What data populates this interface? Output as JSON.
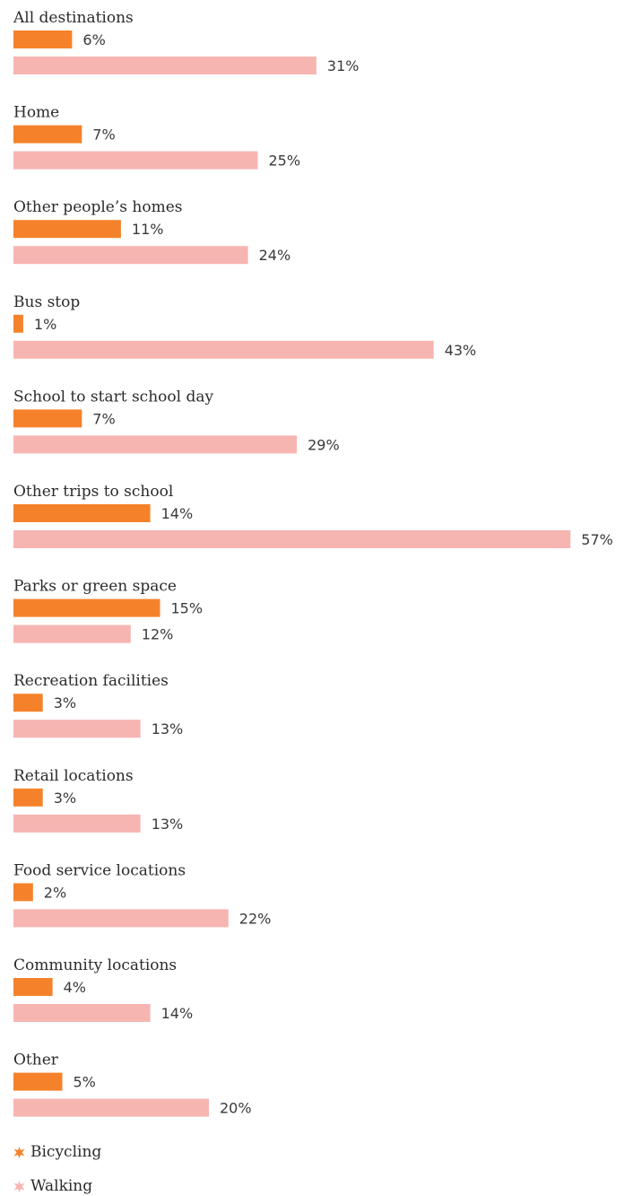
{
  "chart_data": {
    "type": "bar",
    "orientation": "horizontal",
    "value_suffix": "%",
    "categories": [
      "All destinations",
      "Home",
      "Other people’s homes",
      "Bus stop",
      "School to start school day",
      "Other trips to school",
      "Parks or green space",
      "Recreation facilities",
      "Retail locations",
      "Food service locations",
      "Community locations",
      "Other"
    ],
    "series": [
      {
        "name": "Bicycling",
        "color": "#f5822a",
        "values": [
          6,
          7,
          11,
          1,
          7,
          14,
          15,
          3,
          3,
          2,
          4,
          5
        ]
      },
      {
        "name": "Walking",
        "color": "#f7b5b2",
        "values": [
          31,
          25,
          24,
          43,
          29,
          57,
          12,
          13,
          13,
          22,
          14,
          20
        ]
      }
    ],
    "legend": "bottom-left"
  }
}
